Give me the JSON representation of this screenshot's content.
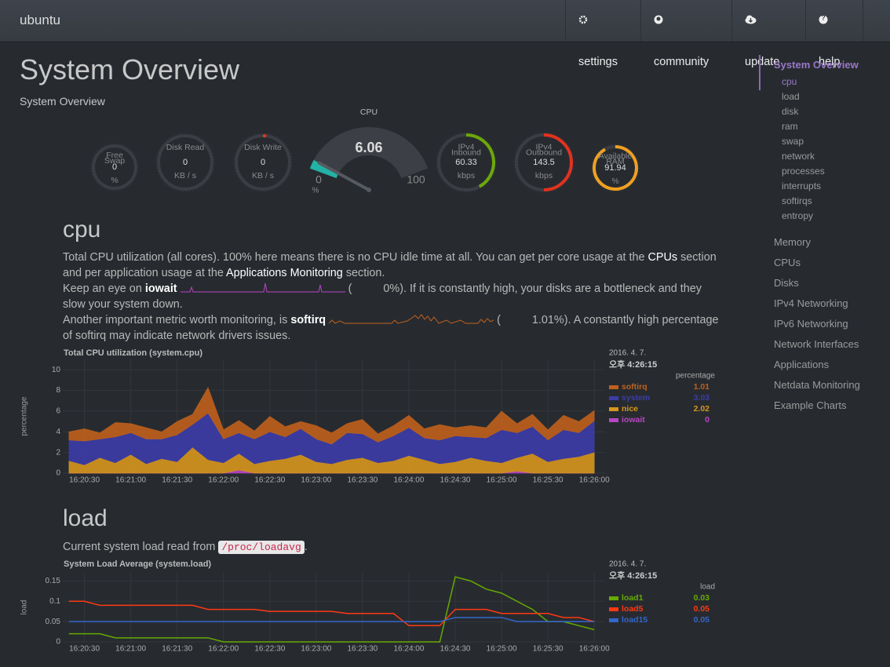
{
  "navbar": {
    "brand": "ubuntu",
    "items": [
      "settings",
      "community",
      "update",
      "help"
    ]
  },
  "header": {
    "title": "System Overview",
    "subtitle": "System Overview"
  },
  "gauges": [
    {
      "title": [
        "Free",
        "Swap"
      ],
      "value": 0,
      "units": "%",
      "color": "#e2321e"
    },
    {
      "title": [
        "Disk Read"
      ],
      "value": 0,
      "units": "KB / s",
      "color": "#e2321e"
    },
    {
      "title": [
        "Disk Write"
      ],
      "value": 0,
      "units": "KB / s",
      "color": "#e2321e"
    },
    {
      "title": [
        "IPv4",
        "Inbound"
      ],
      "value": 60.33,
      "units": "kbps",
      "color": "#6ca80a"
    },
    {
      "title": [
        "IPv4",
        "Outbound"
      ],
      "value": 143.5,
      "units": "kbps",
      "color": "#e2321e"
    },
    {
      "title": [
        "Available",
        "RAM"
      ],
      "value": 91.94,
      "units": "%",
      "color": "#f0a020"
    }
  ],
  "cpu_gauge": {
    "title": "CPU",
    "value": 6.06,
    "min": 0,
    "max": 100,
    "units": "%",
    "color": "#22b3a6"
  },
  "sections": [
    {
      "heading": "cpu",
      "paragraphs": [
        [
          "Total CPU utilization (all cores). 100% here means there is no CPU idle time at all. You can get per core usage at the ",
          "CPUs",
          " section and per application usage at the ",
          "Applications Monitoring",
          " section."
        ],
        [
          "Keep an eye on ",
          "iowait",
          "(",
          "0%). If it is constantly high, your disks are a bottleneck and they slow your system down."
        ],
        [
          "Another important metric worth monitoring, is ",
          "softirq",
          "(",
          "1.01%). A constantly high percentage of softirq may indicate network drivers issues."
        ]
      ]
    },
    {
      "heading": "load",
      "paragraphs": [
        [
          "Current system load read from ",
          "/proc/loadavg",
          "."
        ]
      ]
    }
  ],
  "cpu_chart": {
    "type": "area",
    "stacked": true,
    "title": "Total CPU utilization (system.cpu)",
    "ylabel": "percentage",
    "units": "percentage",
    "legend_date": "2016. 4. 7.",
    "legend_time": "오후 4:26:15",
    "xlim": [
      "16:20:16",
      "16:26:07"
    ],
    "ylim": [
      0,
      11
    ],
    "yticks": [
      0,
      2,
      4,
      6,
      8,
      10
    ],
    "grid": true,
    "xticks": [
      "16:20:30",
      "16:21:00",
      "16:21:30",
      "16:22:00",
      "16:22:30",
      "16:23:00",
      "16:23:30",
      "16:24:00",
      "16:24:30",
      "16:25:00",
      "16:25:30",
      "16:26:00"
    ],
    "x": [
      "16:20:20",
      "16:20:30",
      "16:20:40",
      "16:20:50",
      "16:21:00",
      "16:21:10",
      "16:21:20",
      "16:21:30",
      "16:21:40",
      "16:21:50",
      "16:22:00",
      "16:22:10",
      "16:22:20",
      "16:22:30",
      "16:22:40",
      "16:22:50",
      "16:23:00",
      "16:23:10",
      "16:23:20",
      "16:23:30",
      "16:23:40",
      "16:23:50",
      "16:24:00",
      "16:24:10",
      "16:24:20",
      "16:24:30",
      "16:24:40",
      "16:24:50",
      "16:25:00",
      "16:25:10",
      "16:25:20",
      "16:25:30",
      "16:25:40",
      "16:25:50",
      "16:26:00"
    ],
    "series": [
      {
        "name": "softirq",
        "color": "#c0601c",
        "values": [
          0.8,
          1.2,
          0.6,
          1.4,
          0.9,
          1.1,
          0.7,
          1.3,
          1.0,
          2.5,
          0.9,
          1.2,
          0.8,
          1.5,
          1.0,
          0.7,
          1.3,
          1.1,
          0.9,
          1.4,
          0.8,
          1.0,
          1.2,
          0.9,
          1.5,
          0.8,
          1.1,
          1.0,
          1.8,
          0.9,
          1.2,
          1.0,
          1.4,
          1.1,
          1.01
        ]
      },
      {
        "name": "system",
        "color": "#3c3ca8",
        "values": [
          2.0,
          2.3,
          1.8,
          2.5,
          2.1,
          2.4,
          1.9,
          2.6,
          2.2,
          4.5,
          2.3,
          2.0,
          2.4,
          2.8,
          2.1,
          2.5,
          2.2,
          1.9,
          2.6,
          2.3,
          2.0,
          2.4,
          2.7,
          2.1,
          2.3,
          2.5,
          2.0,
          2.2,
          3.2,
          2.4,
          2.6,
          2.1,
          2.8,
          2.3,
          3.03
        ]
      },
      {
        "name": "nice",
        "color": "#d8961e",
        "values": [
          1.2,
          0.8,
          1.5,
          1.0,
          1.8,
          0.9,
          1.4,
          1.1,
          2.5,
          1.3,
          1.0,
          1.6,
          0.9,
          1.2,
          1.4,
          1.8,
          1.1,
          0.9,
          1.3,
          1.5,
          1.0,
          1.2,
          1.7,
          1.3,
          0.9,
          1.1,
          1.5,
          1.2,
          1.0,
          1.3,
          1.9,
          1.1,
          1.4,
          1.6,
          2.02
        ]
      },
      {
        "name": "iowait",
        "color": "#b845c4",
        "values": [
          0,
          0,
          0,
          0,
          0,
          0,
          0,
          0,
          0,
          0,
          0,
          0.3,
          0,
          0,
          0,
          0,
          0,
          0,
          0,
          0,
          0,
          0,
          0,
          0,
          0,
          0,
          0,
          0,
          0,
          0.2,
          0,
          0,
          0,
          0,
          0
        ]
      }
    ]
  },
  "load_chart": {
    "type": "line",
    "title": "System Load Average (system.load)",
    "ylabel": "load",
    "units": "load",
    "legend_date": "2016. 4. 7.",
    "legend_time": "오후 4:26:15",
    "xlim": [
      "16:20:16",
      "16:26:07"
    ],
    "ylim": [
      0,
      0.17
    ],
    "yticks": [
      0,
      0.05,
      0.1,
      0.15
    ],
    "grid": true,
    "xticks": [
      "16:20:30",
      "16:21:00",
      "16:21:30",
      "16:22:00",
      "16:22:30",
      "16:23:00",
      "16:23:30",
      "16:24:00",
      "16:24:30",
      "16:25:00",
      "16:25:30",
      "16:26:00"
    ],
    "x": [
      "16:20:20",
      "16:20:30",
      "16:20:40",
      "16:20:50",
      "16:21:00",
      "16:21:10",
      "16:21:20",
      "16:21:30",
      "16:21:40",
      "16:21:50",
      "16:22:00",
      "16:22:10",
      "16:22:20",
      "16:22:30",
      "16:22:40",
      "16:22:50",
      "16:23:00",
      "16:23:10",
      "16:23:20",
      "16:23:30",
      "16:23:40",
      "16:23:50",
      "16:24:00",
      "16:24:10",
      "16:24:20",
      "16:24:30",
      "16:24:40",
      "16:24:50",
      "16:25:00",
      "16:25:10",
      "16:25:20",
      "16:25:30",
      "16:25:40",
      "16:25:50",
      "16:26:00"
    ],
    "series": [
      {
        "name": "load1",
        "color": "#66aa00",
        "values": [
          0.02,
          0.02,
          0.02,
          0.01,
          0.01,
          0.01,
          0.01,
          0.01,
          0.01,
          0.01,
          0,
          0,
          0,
          0,
          0,
          0,
          0,
          0,
          0,
          0,
          0,
          0,
          0,
          0,
          0,
          0.16,
          0.15,
          0.13,
          0.12,
          0.1,
          0.08,
          0.05,
          0.05,
          0.04,
          0.03
        ]
      },
      {
        "name": "load5",
        "color": "#fe3912",
        "values": [
          0.1,
          0.1,
          0.09,
          0.09,
          0.09,
          0.09,
          0.09,
          0.09,
          0.09,
          0.08,
          0.08,
          0.08,
          0.08,
          0.075,
          0.075,
          0.075,
          0.075,
          0.075,
          0.07,
          0.07,
          0.07,
          0.07,
          0.04,
          0.04,
          0.04,
          0.08,
          0.08,
          0.08,
          0.07,
          0.07,
          0.07,
          0.07,
          0.06,
          0.06,
          0.05
        ]
      },
      {
        "name": "load15",
        "color": "#3366cc",
        "values": [
          0.05,
          0.05,
          0.05,
          0.05,
          0.05,
          0.05,
          0.05,
          0.05,
          0.05,
          0.05,
          0.05,
          0.05,
          0.05,
          0.05,
          0.05,
          0.05,
          0.05,
          0.05,
          0.05,
          0.05,
          0.05,
          0.05,
          0.05,
          0.05,
          0.05,
          0.06,
          0.06,
          0.06,
          0.06,
          0.05,
          0.05,
          0.05,
          0.05,
          0.05,
          0.05
        ]
      }
    ]
  },
  "sidebar": {
    "active": "System Overview",
    "children": [
      "cpu",
      "load",
      "disk",
      "ram",
      "swap",
      "network",
      "processes",
      "interrupts",
      "softirqs",
      "entropy"
    ],
    "items": [
      "Memory",
      "CPUs",
      "Disks",
      "IPv4 Networking",
      "IPv6 Networking",
      "Network Interfaces",
      "Applications",
      "Netdata Monitoring",
      "Example Charts"
    ]
  }
}
